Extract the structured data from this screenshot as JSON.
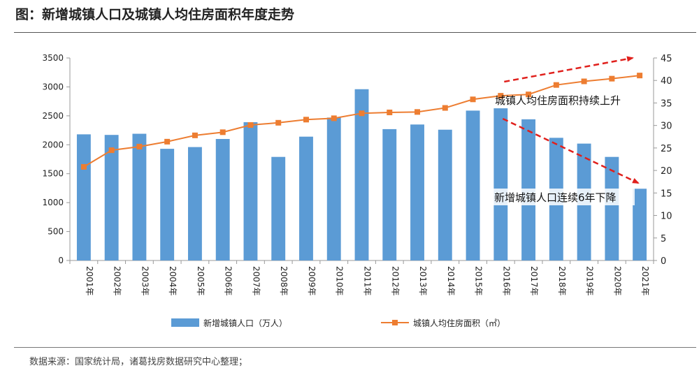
{
  "figure_title": "图：新增城镇人口及城镇人均住房面积年度走势",
  "source_note": "数据来源：国家统计局，诸葛找房数据研究中心整理；",
  "chart_data": {
    "type": "bar+line",
    "categories": [
      "2001年",
      "2002年",
      "2003年",
      "2004年",
      "2005年",
      "2006年",
      "2007年",
      "2008年",
      "2009年",
      "2010年",
      "2011年",
      "2012年",
      "2013年",
      "2014年",
      "2015年",
      "2016年",
      "2017年",
      "2018年",
      "2019年",
      "2020年",
      "2021年"
    ],
    "series": [
      {
        "name": "新增城镇人口（万人）",
        "type": "bar",
        "axis": "left",
        "color": "#5B9BD5",
        "values": [
          2180,
          2170,
          2190,
          1930,
          1960,
          2100,
          2390,
          1790,
          2140,
          2470,
          2960,
          2270,
          2350,
          2260,
          2590,
          2630,
          2440,
          2120,
          2020,
          1790,
          1240
        ]
      },
      {
        "name": "城镇人均住房面积（㎡）",
        "type": "line",
        "axis": "right",
        "color": "#ED7D31",
        "values": [
          20.8,
          24.5,
          25.3,
          26.4,
          27.8,
          28.5,
          30.1,
          30.6,
          31.3,
          31.6,
          32.7,
          32.9,
          33.0,
          33.9,
          35.8,
          36.6,
          36.9,
          39.0,
          39.8,
          40.4,
          41.1
        ]
      }
    ],
    "y_left": {
      "min": 0,
      "max": 3500,
      "ticks": [
        0,
        500,
        1000,
        1500,
        2000,
        2500,
        3000,
        3500
      ]
    },
    "y_right": {
      "min": 0,
      "max": 45,
      "ticks": [
        0,
        5,
        10,
        15,
        20,
        25,
        30,
        35,
        40,
        45
      ]
    },
    "annotations": {
      "rising_text": "城镇人均住房面积持续上升",
      "falling_text": "新增城镇人口连续6年下降",
      "arrow_color": "#E0201C"
    },
    "legend_position": "bottom"
  }
}
